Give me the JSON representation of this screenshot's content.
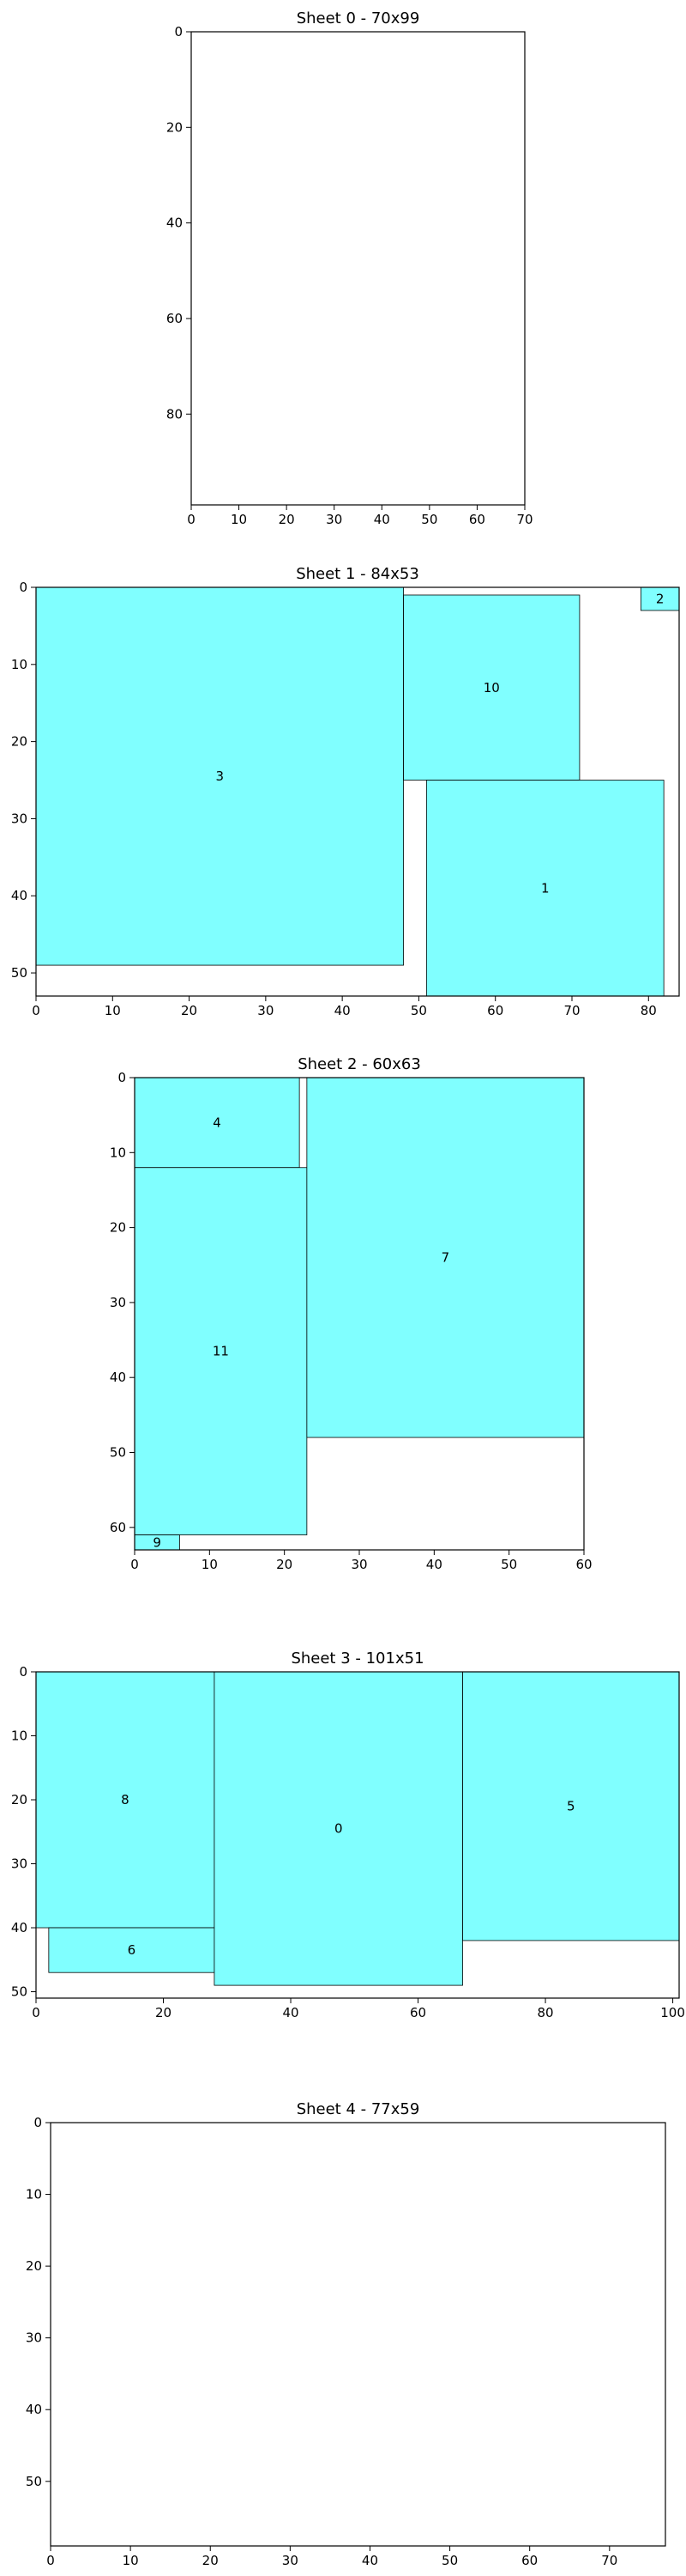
{
  "colors": {
    "piece_fill": "#80ffff",
    "edge": "#000000"
  },
  "chart_data": [
    {
      "type": "rectangle-packing",
      "title": "Sheet 0 - 70x99",
      "width": 70,
      "height": 99,
      "xlim": [
        0,
        70
      ],
      "ylim": [
        0,
        99
      ],
      "y_inverted": true,
      "xticks": [
        0,
        10,
        20,
        30,
        40,
        50,
        60,
        70
      ],
      "yticks": [
        0,
        20,
        40,
        60,
        80
      ],
      "pieces": []
    },
    {
      "type": "rectangle-packing",
      "title": "Sheet 1 - 84x53",
      "width": 84,
      "height": 53,
      "xlim": [
        0,
        84
      ],
      "ylim": [
        0,
        53
      ],
      "y_inverted": true,
      "xticks": [
        0,
        10,
        20,
        30,
        40,
        50,
        60,
        70,
        80
      ],
      "yticks": [
        0,
        10,
        20,
        30,
        40,
        50
      ],
      "pieces": [
        {
          "id": "3",
          "x": 0,
          "y": 0,
          "w": 48,
          "h": 49
        },
        {
          "id": "10",
          "x": 48,
          "y": 1,
          "w": 23,
          "h": 24
        },
        {
          "id": "2",
          "x": 79,
          "y": 0,
          "w": 5,
          "h": 3
        },
        {
          "id": "1",
          "x": 51,
          "y": 25,
          "w": 31,
          "h": 28
        }
      ]
    },
    {
      "type": "rectangle-packing",
      "title": "Sheet 2 - 60x63",
      "width": 60,
      "height": 63,
      "xlim": [
        0,
        60
      ],
      "ylim": [
        0,
        63
      ],
      "y_inverted": true,
      "xticks": [
        0,
        10,
        20,
        30,
        40,
        50,
        60
      ],
      "yticks": [
        0,
        10,
        20,
        30,
        40,
        50,
        60
      ],
      "pieces": [
        {
          "id": "4",
          "x": 0,
          "y": 0,
          "w": 22,
          "h": 12
        },
        {
          "id": "11",
          "x": 0,
          "y": 12,
          "w": 23,
          "h": 49
        },
        {
          "id": "7",
          "x": 23,
          "y": 0,
          "w": 37,
          "h": 48
        },
        {
          "id": "9",
          "x": 0,
          "y": 61,
          "w": 6,
          "h": 2
        }
      ]
    },
    {
      "type": "rectangle-packing",
      "title": "Sheet 3 - 101x51",
      "width": 101,
      "height": 51,
      "xlim": [
        0,
        101
      ],
      "ylim": [
        0,
        51
      ],
      "y_inverted": true,
      "xticks": [
        0,
        20,
        40,
        60,
        80,
        100
      ],
      "yticks": [
        0,
        10,
        20,
        30,
        40,
        50
      ],
      "pieces": [
        {
          "id": "8",
          "x": 0,
          "y": 0,
          "w": 28,
          "h": 40
        },
        {
          "id": "6",
          "x": 2,
          "y": 40,
          "w": 26,
          "h": 7
        },
        {
          "id": "0",
          "x": 28,
          "y": 0,
          "w": 39,
          "h": 49
        },
        {
          "id": "5",
          "x": 67,
          "y": 0,
          "w": 34,
          "h": 42
        }
      ]
    },
    {
      "type": "rectangle-packing",
      "title": "Sheet 4 - 77x59",
      "width": 77,
      "height": 59,
      "xlim": [
        0,
        77
      ],
      "ylim": [
        0,
        59
      ],
      "y_inverted": true,
      "xticks": [
        0,
        10,
        20,
        30,
        40,
        50,
        60,
        70
      ],
      "yticks": [
        0,
        10,
        20,
        30,
        40,
        50
      ],
      "pieces": []
    }
  ]
}
